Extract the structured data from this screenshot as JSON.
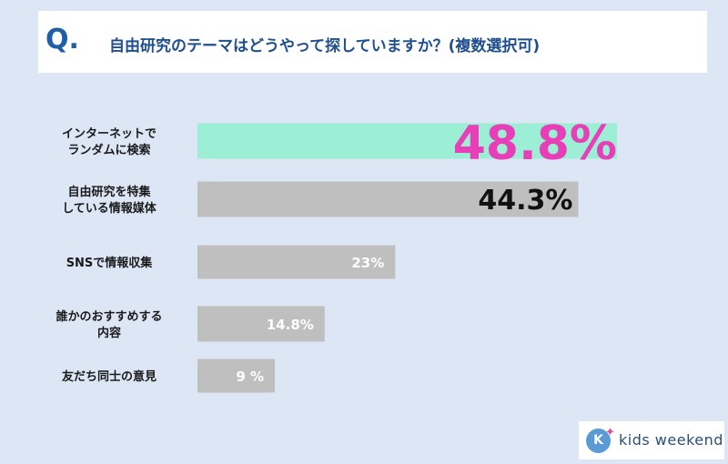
{
  "question": {
    "mark": "Q",
    "mark_dot": ".",
    "text": "自由研究のテーマはどうやって探していますか？(複数選択可)"
  },
  "colors": {
    "background": "#dce6f5",
    "highlight_bar": "#9cefd5",
    "default_bar": "#bfbfbf",
    "highlight_value": "#e83fb8",
    "question_text": "#1f4f8f"
  },
  "chart_data": {
    "type": "bar",
    "orientation": "horizontal",
    "title": "",
    "xlabel": "",
    "ylabel": "",
    "xlim": [
      0,
      52
    ],
    "categories": [
      [
        "インターネットで",
        "ランダムに検索"
      ],
      [
        "自由研究を特集",
        "している情報媒体"
      ],
      [
        "SNSで情報収集"
      ],
      [
        "誰かのおすすめする",
        "内容"
      ],
      [
        "友だち同士の意見"
      ]
    ],
    "values": [
      48.8,
      44.3,
      23,
      14.8,
      9
    ],
    "value_labels": [
      "48.8%",
      "44.3%",
      "23%",
      "14.8%",
      "9 %"
    ],
    "highlight_index": 0
  },
  "logo": {
    "text": "kids weekend",
    "icon": "k-circle-icon",
    "star": "star-icon"
  }
}
